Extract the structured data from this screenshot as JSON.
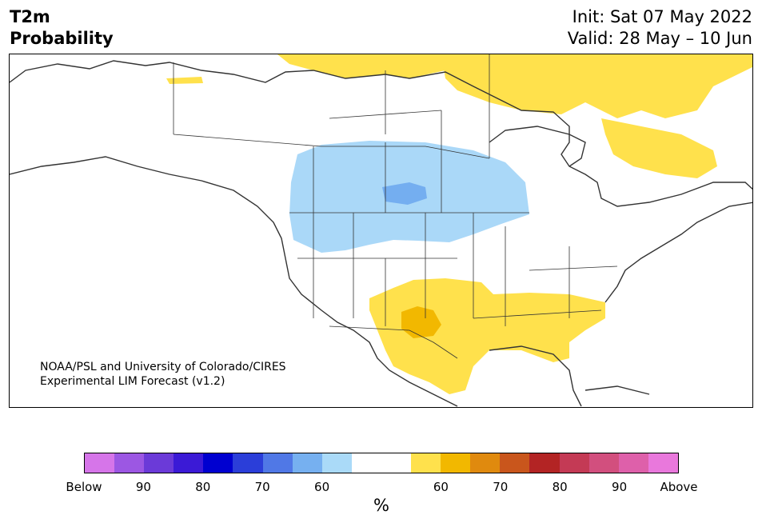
{
  "title": {
    "line1": "T2m",
    "line2": "Probability",
    "init": "Init: Sat 07 May 2022",
    "valid": "Valid: 28 May – 10 Jun"
  },
  "credit": {
    "line1": "NOAA/PSL and University of Colorado/CIRES",
    "line2": "Experimental LIM Forecast (v1.2)"
  },
  "map": {
    "region": "North America",
    "below_normal_color": "#aad8f8",
    "below_normal_strong_color": "#74aef0",
    "above_normal_color": "#ffe14c",
    "above_normal_strong_color": "#f2b800",
    "coast_color": "#333333"
  },
  "colorbar": {
    "unit": "%",
    "colors": [
      "#d675e9",
      "#9c57e3",
      "#6b3ad8",
      "#3b1ad6",
      "#0000d0",
      "#2b3ed9",
      "#5078e6",
      "#76b0f0",
      "#aadaf8",
      "#ffffff",
      "#ffffff",
      "#ffe14c",
      "#f2b800",
      "#e08a0e",
      "#c9561c",
      "#b32424",
      "#c43a55",
      "#d24f7e",
      "#de60aa",
      "#e978dc"
    ],
    "labels": [
      "Below",
      "90",
      "80",
      "70",
      "60",
      "60",
      "70",
      "80",
      "90",
      "Above"
    ]
  }
}
